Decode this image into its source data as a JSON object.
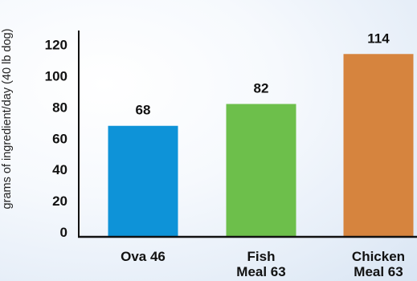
{
  "chart_data": {
    "type": "bar",
    "title": "",
    "xlabel": "",
    "ylabel": "grams of ingredient/day (40 lb dog)",
    "categories": [
      "Ova 46",
      "Fish Meal 63",
      "Chicken Meal 63"
    ],
    "category_lines": [
      [
        "Ova 46"
      ],
      [
        "Fish",
        "Meal 63"
      ],
      [
        "Chicken",
        "Meal 63"
      ]
    ],
    "values": [
      68,
      82,
      114
    ],
    "value_labels": [
      "68",
      "82",
      "114"
    ],
    "colors": [
      "#0e93d8",
      "#6dbf4b",
      "#d6843e"
    ],
    "ylim": [
      0,
      120
    ],
    "yticks": [
      0,
      20,
      40,
      60,
      80,
      100,
      120
    ],
    "ytick_labels": [
      "0",
      "20",
      "40",
      "60",
      "80",
      "100",
      "120"
    ],
    "grid": false,
    "legend": "none"
  }
}
